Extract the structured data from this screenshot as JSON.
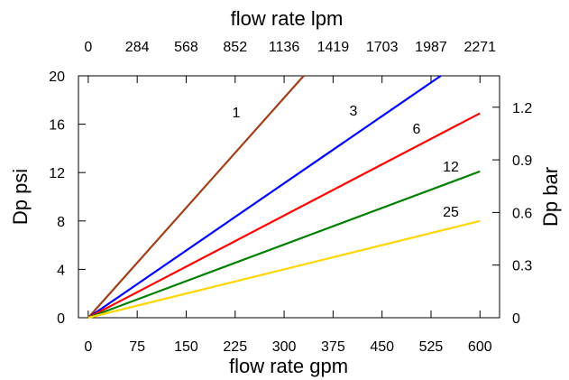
{
  "chart_data": {
    "type": "line",
    "x": [
      0,
      75,
      150,
      225,
      300,
      375,
      450,
      525,
      600
    ],
    "xlabel": "flow rate gpm",
    "ylabel": "Dp psi",
    "xlim": [
      -15,
      630
    ],
    "ylim": [
      0,
      20
    ],
    "x_ticks": [
      "0",
      "75",
      "150",
      "225",
      "300",
      "375",
      "450",
      "525",
      "600"
    ],
    "y_ticks": [
      "0",
      "4",
      "8",
      "12",
      "16",
      "20"
    ],
    "x2label": "flow rate lpm",
    "x2_ticks": [
      "0",
      "284",
      "568",
      "852",
      "1136",
      "1419",
      "1703",
      "1987",
      "2271"
    ],
    "y2label": "Dp bar",
    "y2_ticks": [
      "0",
      "0.3",
      "0.6",
      "0.9",
      "1.2"
    ],
    "grid": false,
    "series": [
      {
        "name": "1",
        "color": "#a0401a",
        "x": [
          0,
          330
        ],
        "y": [
          0,
          20
        ]
      },
      {
        "name": "3",
        "color": "#0000ff",
        "x": [
          0,
          540
        ],
        "y": [
          0,
          20
        ]
      },
      {
        "name": "6",
        "color": "#ff0000",
        "x": [
          0,
          600
        ],
        "y": [
          0,
          16.9
        ]
      },
      {
        "name": "12",
        "color": "#008000",
        "x": [
          0,
          600
        ],
        "y": [
          0,
          12.1
        ]
      },
      {
        "name": "25",
        "color": "#ffd700",
        "x": [
          0,
          600
        ],
        "y": [
          0,
          8.0
        ]
      }
    ]
  }
}
